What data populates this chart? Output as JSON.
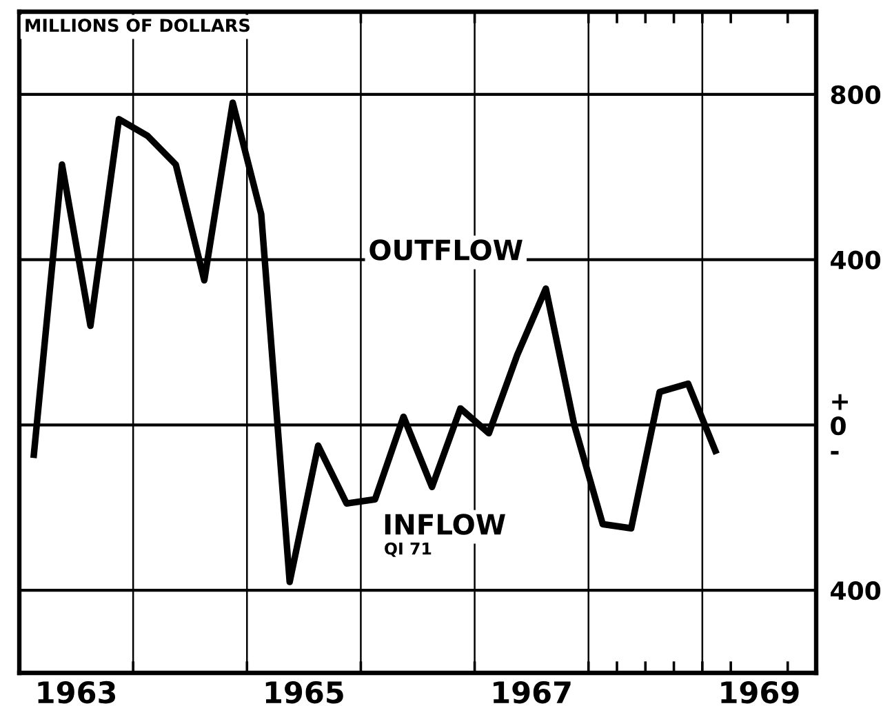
{
  "chart_data": {
    "type": "line",
    "ylabel": "MILLIONS OF DOLLARS",
    "x": [
      1963.125,
      1963.375,
      1963.625,
      1963.875,
      1964.125,
      1964.375,
      1964.625,
      1964.875,
      1965.125,
      1965.375,
      1965.625,
      1965.875,
      1966.125,
      1966.375,
      1966.625,
      1966.875,
      1967.125,
      1967.375,
      1967.625,
      1967.875,
      1968.125,
      1968.375,
      1968.625,
      1968.875,
      1969.125
    ],
    "series": [
      {
        "color": "#000000",
        "values": [
          -80,
          630,
          240,
          740,
          700,
          630,
          350,
          780,
          510,
          -380,
          -50,
          -190,
          -180,
          20,
          -150,
          40,
          -20,
          170,
          330,
          0,
          -240,
          -250,
          80,
          100,
          -70
        ]
      }
    ],
    "xlim": [
      1963,
      1970
    ],
    "ylim": [
      -600,
      1000
    ],
    "xticks": [
      {
        "value": 1963.5,
        "label": "1963"
      },
      {
        "value": 1964,
        "label": null
      },
      {
        "value": 1965,
        "label": null
      },
      {
        "value": 1965.5,
        "label": "1965"
      },
      {
        "value": 1966,
        "label": null
      },
      {
        "value": 1967,
        "label": null
      },
      {
        "value": 1967.5,
        "label": "1967"
      },
      {
        "value": 1968,
        "label": null
      },
      {
        "value": 1968.25,
        "label": null
      },
      {
        "value": 1968.5,
        "label": null
      },
      {
        "value": 1968.75,
        "label": null
      },
      {
        "value": 1969,
        "label": null
      },
      {
        "value": 1969.25,
        "label": null
      },
      {
        "value": 1969.5,
        "label": "1969"
      },
      {
        "value": 1969.75,
        "label": null
      }
    ],
    "yticks": [
      800,
      400,
      {
        "value": 0,
        "label": "+\n0\n-"
      },
      {
        "value": -400,
        "label": "400"
      }
    ],
    "grid": true,
    "annotations": [
      "OUTFLOW",
      "INFLOW",
      "QI 71"
    ]
  }
}
